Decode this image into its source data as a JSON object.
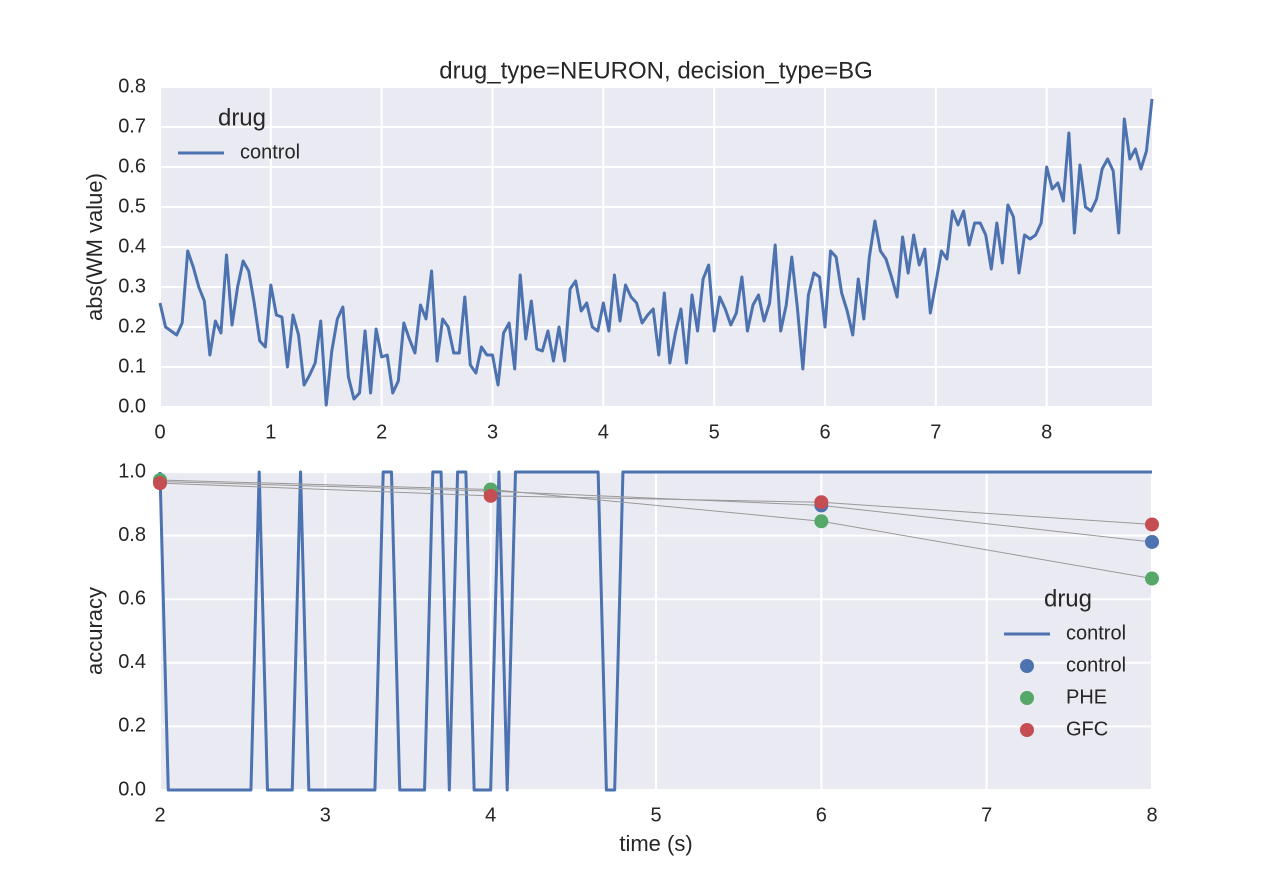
{
  "chart_data": [
    {
      "type": "line",
      "title": "drug_type=NEURON, decision_type=BG",
      "ylabel": "abs(WM value)",
      "legend_title": "drug",
      "legend": "upper left",
      "grid": true,
      "background": "#eaeaf2",
      "xlim": [
        0,
        8.95
      ],
      "xticks": [
        0,
        1,
        2,
        3,
        4,
        5,
        6,
        7,
        8
      ],
      "ylim": [
        0,
        0.8
      ],
      "yticks": [
        {
          "value": 0,
          "label": "0.0"
        },
        0.1,
        0.2,
        0.3,
        0.4,
        0.5,
        0.6,
        0.7,
        0.8
      ],
      "series": [
        {
          "name": "control",
          "color": "#4c72b0",
          "style": "line",
          "x": [
            0,
            0.05,
            0.1,
            0.15,
            0.2,
            0.25,
            0.3,
            0.35,
            0.4,
            0.45,
            0.5,
            0.55,
            0.6,
            0.65,
            0.7,
            0.75,
            0.8,
            0.85,
            0.9,
            0.95,
            1,
            1.05,
            1.1,
            1.15,
            1.2,
            1.25,
            1.3,
            1.35,
            1.4,
            1.45,
            1.5,
            1.55,
            1.6,
            1.65,
            1.7,
            1.75,
            1.8,
            1.85,
            1.9,
            1.95,
            2,
            2.05,
            2.1,
            2.15,
            2.2,
            2.25,
            2.3,
            2.35,
            2.4,
            2.45,
            2.5,
            2.55,
            2.6,
            2.65,
            2.7,
            2.75,
            2.8,
            2.85,
            2.9,
            2.95,
            3,
            3.05,
            3.1,
            3.15,
            3.2,
            3.25,
            3.3,
            3.35,
            3.4,
            3.45,
            3.5,
            3.55,
            3.6,
            3.65,
            3.7,
            3.75,
            3.8,
            3.85,
            3.9,
            3.95,
            4,
            4.05,
            4.1,
            4.15,
            4.2,
            4.25,
            4.3,
            4.35,
            4.4,
            4.45,
            4.5,
            4.55,
            4.6,
            4.65,
            4.7,
            4.75,
            4.8,
            4.85,
            4.9,
            4.95,
            5,
            5.05,
            5.1,
            5.15,
            5.2,
            5.25,
            5.3,
            5.35,
            5.4,
            5.45,
            5.5,
            5.55,
            5.6,
            5.65,
            5.7,
            5.75,
            5.8,
            5.85,
            5.9,
            5.95,
            6,
            6.05,
            6.1,
            6.15,
            6.2,
            6.25,
            6.3,
            6.35,
            6.4,
            6.45,
            6.5,
            6.55,
            6.6,
            6.65,
            6.7,
            6.75,
            6.8,
            6.85,
            6.9,
            6.95,
            7,
            7.05,
            7.1,
            7.15,
            7.2,
            7.25,
            7.3,
            7.35,
            7.4,
            7.45,
            7.5,
            7.55,
            7.6,
            7.65,
            7.7,
            7.75,
            7.8,
            7.85,
            7.9,
            7.95,
            8,
            8.05,
            8.1,
            8.15,
            8.2,
            8.25,
            8.3,
            8.35,
            8.4,
            8.45,
            8.5,
            8.55,
            8.6,
            8.65,
            8.7,
            8.75,
            8.8,
            8.85,
            8.9,
            8.95
          ],
          "values": [
            0.26,
            0.2,
            0.19,
            0.18,
            0.21,
            0.39,
            0.35,
            0.3,
            0.265,
            0.13,
            0.215,
            0.185,
            0.38,
            0.205,
            0.3,
            0.365,
            0.34,
            0.26,
            0.165,
            0.15,
            0.305,
            0.23,
            0.225,
            0.1,
            0.23,
            0.18,
            0.055,
            0.08,
            0.11,
            0.215,
            0.005,
            0.14,
            0.22,
            0.25,
            0.075,
            0.02,
            0.035,
            0.19,
            0.035,
            0.195,
            0.125,
            0.13,
            0.035,
            0.065,
            0.21,
            0.17,
            0.135,
            0.255,
            0.22,
            0.34,
            0.115,
            0.22,
            0.2,
            0.135,
            0.135,
            0.275,
            0.105,
            0.085,
            0.15,
            0.13,
            0.13,
            0.055,
            0.185,
            0.21,
            0.095,
            0.33,
            0.17,
            0.265,
            0.145,
            0.14,
            0.19,
            0.115,
            0.2,
            0.115,
            0.295,
            0.315,
            0.24,
            0.26,
            0.2,
            0.19,
            0.26,
            0.19,
            0.33,
            0.215,
            0.305,
            0.275,
            0.26,
            0.21,
            0.23,
            0.245,
            0.13,
            0.285,
            0.11,
            0.185,
            0.245,
            0.11,
            0.28,
            0.19,
            0.32,
            0.355,
            0.19,
            0.275,
            0.245,
            0.205,
            0.235,
            0.325,
            0.19,
            0.255,
            0.28,
            0.215,
            0.26,
            0.405,
            0.19,
            0.255,
            0.375,
            0.25,
            0.095,
            0.28,
            0.335,
            0.325,
            0.2,
            0.39,
            0.375,
            0.285,
            0.24,
            0.18,
            0.32,
            0.22,
            0.375,
            0.465,
            0.39,
            0.37,
            0.325,
            0.275,
            0.425,
            0.335,
            0.43,
            0.355,
            0.395,
            0.235,
            0.31,
            0.39,
            0.37,
            0.49,
            0.455,
            0.49,
            0.405,
            0.46,
            0.46,
            0.43,
            0.345,
            0.46,
            0.36,
            0.505,
            0.475,
            0.335,
            0.43,
            0.42,
            0.43,
            0.46,
            0.6,
            0.545,
            0.56,
            0.515,
            0.685,
            0.435,
            0.605,
            0.5,
            0.49,
            0.52,
            0.595,
            0.62,
            0.59,
            0.435,
            0.72,
            0.62,
            0.645,
            0.595,
            0.64,
            0.77
          ]
        }
      ]
    },
    {
      "type": "line",
      "xlabel": "time (s)",
      "ylabel": "accuracy",
      "legend_title": "drug",
      "legend": "lower right",
      "grid": true,
      "background": "#eaeaf2",
      "xlim": [
        2,
        8
      ],
      "xticks": [
        2,
        3,
        4,
        5,
        6,
        7,
        8
      ],
      "ylim": [
        0,
        1
      ],
      "yticks": [
        {
          "value": 0,
          "label": "0.0"
        },
        0.2,
        0.4,
        0.6,
        0.8,
        {
          "value": 1,
          "label": "1.0"
        }
      ],
      "series": [
        {
          "name": "control",
          "color": "#4c72b0",
          "style": "line",
          "x": [
            2,
            2.05,
            2.55,
            2.6,
            2.65,
            2.8,
            2.85,
            2.9,
            3.3,
            3.35,
            3.4,
            3.45,
            3.6,
            3.65,
            3.7,
            3.75,
            3.8,
            3.85,
            3.9,
            4,
            4.05,
            4.1,
            4.15,
            4.65,
            4.7,
            4.75,
            4.8,
            8
          ],
          "values": [
            1,
            0,
            0,
            1,
            0,
            0,
            1,
            0,
            0,
            1,
            1,
            0,
            0,
            1,
            1,
            0,
            1,
            1,
            0,
            0,
            1,
            0,
            1,
            1,
            0,
            0,
            1,
            1
          ]
        },
        {
          "name": "control",
          "color": "#4c72b0",
          "style": "marker",
          "line_color": "#999999",
          "x": [
            2,
            4,
            6,
            8
          ],
          "values": [
            0.97,
            0.94,
            0.895,
            0.78
          ]
        },
        {
          "name": "PHE",
          "color": "#55a868",
          "style": "marker",
          "line_color": "#999999",
          "x": [
            2,
            4,
            6,
            8
          ],
          "values": [
            0.975,
            0.945,
            0.845,
            0.665
          ]
        },
        {
          "name": "GFC",
          "color": "#c44e52",
          "style": "marker",
          "line_color": "#999999",
          "x": [
            2,
            4,
            6,
            8
          ],
          "values": [
            0.965,
            0.925,
            0.905,
            0.835
          ]
        }
      ]
    }
  ]
}
